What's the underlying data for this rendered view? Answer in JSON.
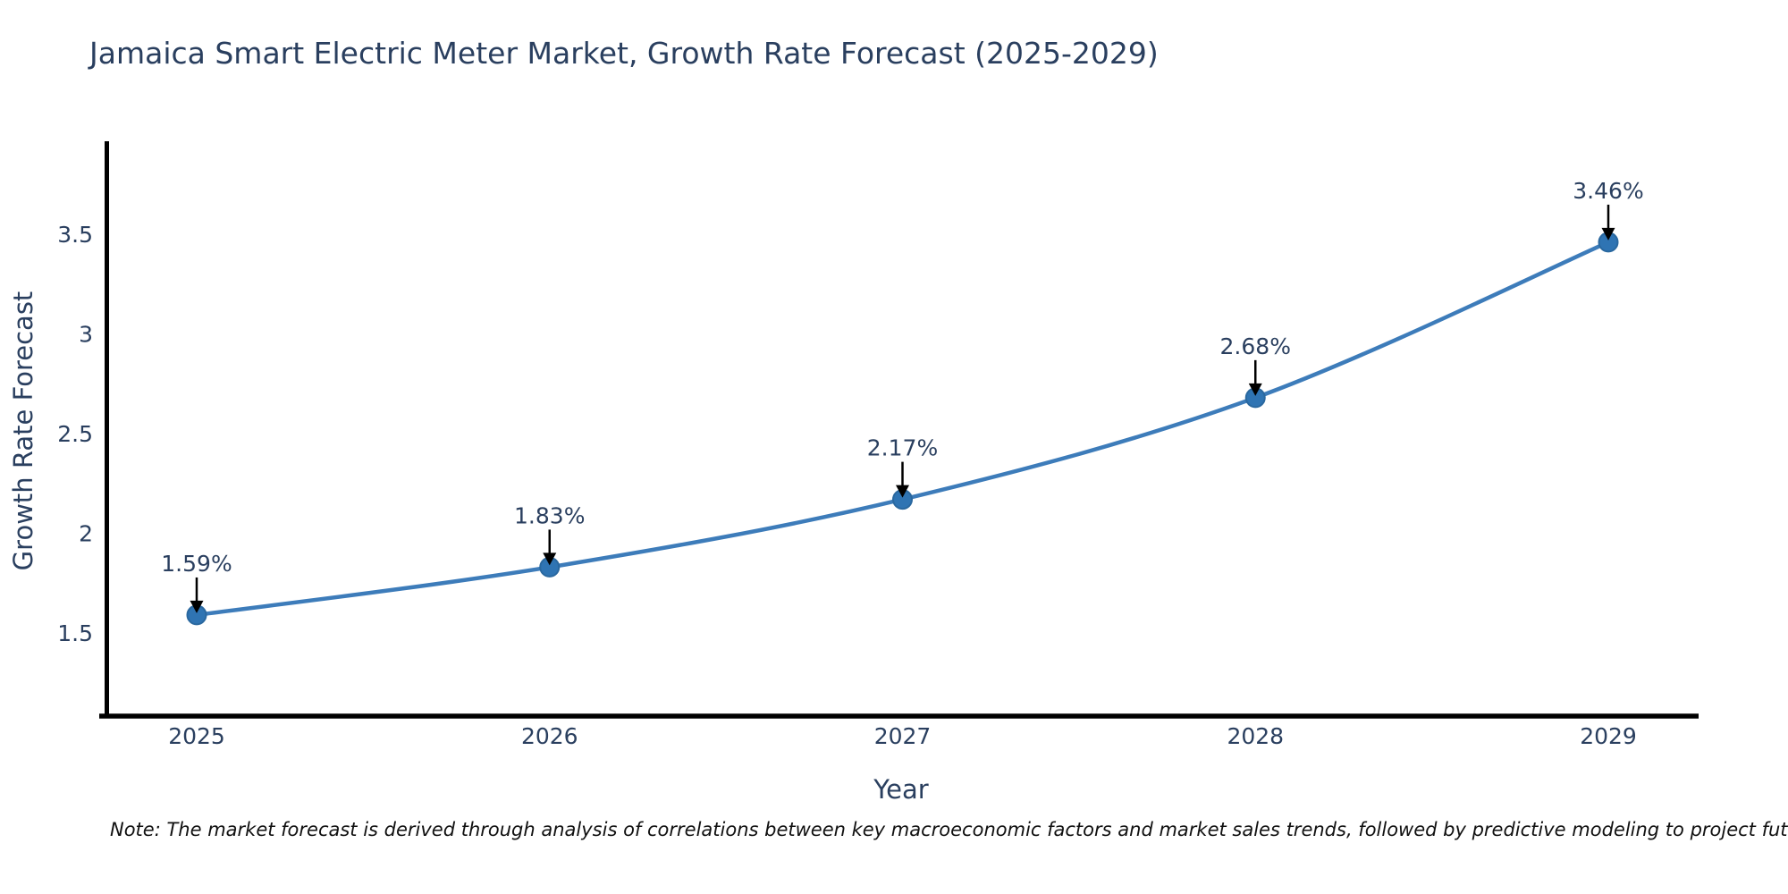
{
  "chart_data": {
    "type": "line",
    "title": "Jamaica Smart Electric Meter Market, Growth Rate Forecast (2025-2029)",
    "xlabel": "Year",
    "ylabel": "Growth Rate Forecast",
    "x": [
      2025,
      2026,
      2027,
      2028,
      2029
    ],
    "series": [
      {
        "name": "Growth Rate Forecast",
        "values": [
          1.59,
          1.83,
          2.17,
          2.68,
          3.46
        ]
      }
    ],
    "point_labels": [
      "1.59%",
      "1.83%",
      "2.17%",
      "2.68%",
      "3.46%"
    ],
    "ytick_values": [
      1.5,
      2,
      2.5,
      3,
      3.5
    ],
    "ytick_labels": [
      "1.5",
      "2",
      "2.5",
      "3",
      "3.5"
    ],
    "xtick_labels": [
      "2025",
      "2026",
      "2027",
      "2028",
      "2029"
    ],
    "ylim": [
      1.08,
      4.13
    ],
    "grid": false,
    "legend_position": "none",
    "colors": {
      "line": "#3d7cba",
      "marker": "#2f74b3",
      "marker_edge": "#2a689f",
      "axis": "#000000",
      "text": "#2a3f5f",
      "arrow": "#000000"
    }
  },
  "footnote": {
    "text": "Note: The market forecast is derived through analysis of correlations between key macroeconomic factors and market sales trends, followed by predictive modeling to project future sales"
  }
}
